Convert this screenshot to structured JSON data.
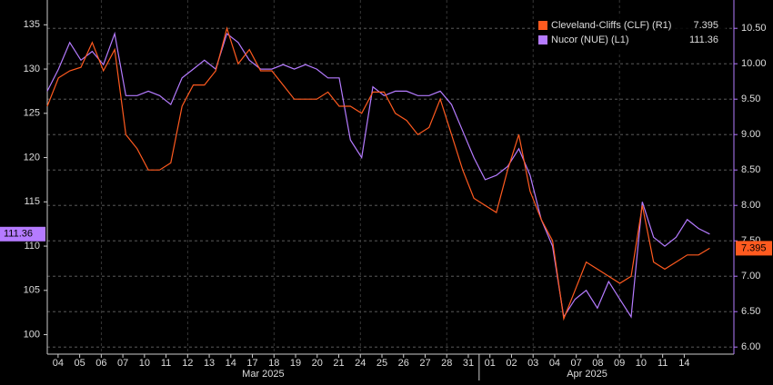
{
  "chart_data": {
    "type": "line",
    "x": [
      -0.5,
      0.02,
      0.54,
      1.06,
      1.58,
      2.1,
      2.62,
      3.14,
      3.66,
      4.18,
      4.7,
      5.22,
      5.74,
      6.26,
      6.78,
      7.3,
      7.82,
      8.34,
      8.86,
      9.38,
      9.9,
      10.42,
      10.94,
      11.46,
      11.98,
      12.5,
      13.02,
      13.54,
      14.06,
      14.58,
      15.1,
      15.62,
      16.14,
      16.66,
      17.18,
      17.7,
      18.22,
      18.74,
      19.26,
      19.78,
      20.3,
      20.82,
      21.34,
      21.86,
      22.38,
      22.9,
      23.42,
      23.94,
      24.46,
      24.98,
      25.5,
      26.02,
      26.54,
      27.06,
      27.58,
      28.1,
      28.62,
      29.14,
      29.66,
      30.18
    ],
    "xlim": [
      -0.5,
      31.3
    ],
    "xticks": [
      {
        "value": 0,
        "label": "04"
      },
      {
        "value": 1,
        "label": "05"
      },
      {
        "value": 2,
        "label": "06"
      },
      {
        "value": 3,
        "label": "07"
      },
      {
        "value": 4,
        "label": "10"
      },
      {
        "value": 5,
        "label": "11"
      },
      {
        "value": 6,
        "label": "12"
      },
      {
        "value": 7,
        "label": "13"
      },
      {
        "value": 8,
        "label": "14"
      },
      {
        "value": 9,
        "label": "17"
      },
      {
        "value": 10,
        "label": "18"
      },
      {
        "value": 11,
        "label": "19"
      },
      {
        "value": 12,
        "label": "20"
      },
      {
        "value": 13,
        "label": "21"
      },
      {
        "value": 14,
        "label": "24"
      },
      {
        "value": 15,
        "label": "25"
      },
      {
        "value": 16,
        "label": "26"
      },
      {
        "value": 17,
        "label": "27"
      },
      {
        "value": 18,
        "label": "28"
      },
      {
        "value": 19,
        "label": "31"
      },
      {
        "value": 20,
        "label": "01"
      },
      {
        "value": 21,
        "label": "02"
      },
      {
        "value": 22,
        "label": "03"
      },
      {
        "value": 23,
        "label": "04"
      },
      {
        "value": 24,
        "label": "07"
      },
      {
        "value": 25,
        "label": "08"
      },
      {
        "value": 26,
        "label": "09"
      },
      {
        "value": 27,
        "label": "10"
      },
      {
        "value": 28,
        "label": "11"
      },
      {
        "value": 29,
        "label": "14"
      }
    ],
    "month_ticks": [
      {
        "value": 9.5,
        "label": "Mar 2025"
      },
      {
        "value": 24.5,
        "label": "Apr 2025"
      }
    ],
    "ylim": [
      97.8,
      137.8
    ],
    "yticks": [
      100,
      105,
      110,
      115,
      120,
      125,
      130,
      135
    ],
    "y2lim": [
      5.9,
      10.9
    ],
    "y2ticks": [
      {
        "value": 6,
        "label": "6.00"
      },
      {
        "value": 6.5,
        "label": "6.50"
      },
      {
        "value": 7,
        "label": "7.00"
      },
      {
        "value": 7.5,
        "label": "7.50"
      },
      {
        "value": 8,
        "label": "8.00"
      },
      {
        "value": 8.5,
        "label": "8.50"
      },
      {
        "value": 9,
        "label": "9.00"
      },
      {
        "value": 9.5,
        "label": "9.50"
      },
      {
        "value": 10,
        "label": "10.00"
      },
      {
        "value": 10.5,
        "label": "10.50"
      }
    ],
    "grid": true,
    "legend": "top-right",
    "series": [
      {
        "name": "Cleveland-Cliffs (CLF) (R1)",
        "color": "#ff5a1f",
        "axis": "y2",
        "values": [
          9.4,
          9.8,
          9.9,
          9.95,
          10.3,
          9.9,
          10.2,
          9.0,
          8.8,
          8.5,
          8.5,
          8.6,
          9.4,
          9.7,
          9.7,
          9.9,
          10.5,
          10.0,
          10.2,
          9.9,
          9.9,
          9.7,
          9.5,
          9.5,
          9.5,
          9.6,
          9.4,
          9.4,
          9.3,
          9.6,
          9.6,
          9.3,
          9.2,
          9.0,
          9.1,
          9.5,
          9.0,
          8.5,
          8.1,
          8.0,
          7.9,
          8.5,
          9.0,
          8.2,
          7.8,
          7.5,
          6.4,
          6.8,
          7.2,
          7.1,
          7.0,
          6.9,
          7.0,
          8.0,
          7.2,
          7.1,
          7.2,
          7.3,
          7.3,
          7.395
        ]
      },
      {
        "name": "Nucor (NUE) (L1)",
        "color": "#b57bff",
        "values": [
          127.5,
          130,
          133,
          131,
          132,
          130.5,
          134,
          127,
          127,
          127.5,
          127,
          126,
          129,
          130,
          131,
          130,
          134,
          133,
          131,
          130,
          130,
          130.5,
          130,
          130.5,
          130,
          129,
          129,
          122,
          120,
          128,
          127,
          127.5,
          127.5,
          127,
          127,
          127.5,
          126,
          123,
          120,
          117.5,
          118,
          119,
          121,
          118,
          113,
          110,
          102,
          104,
          105,
          103,
          106,
          104,
          102,
          115,
          111,
          110,
          111,
          113,
          112,
          111.36
        ]
      }
    ]
  }
}
